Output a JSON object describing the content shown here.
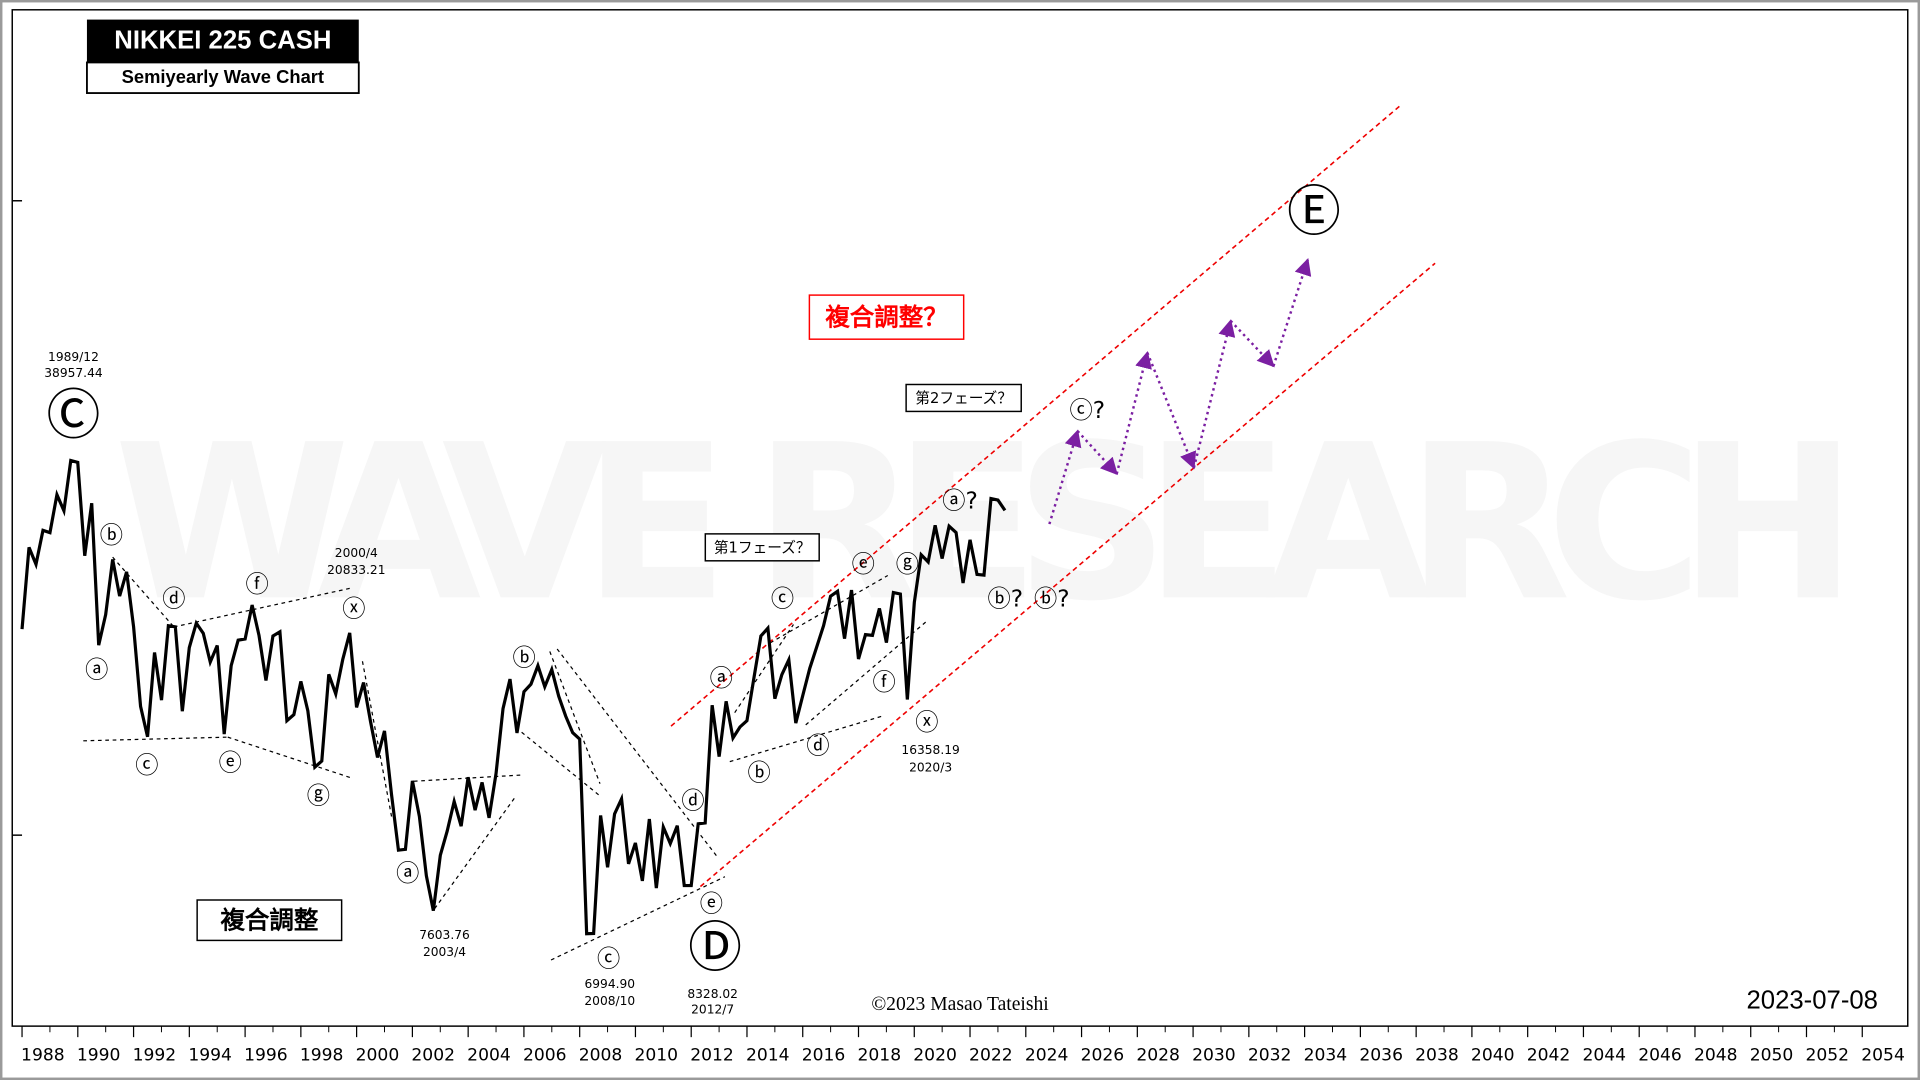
{
  "chart_data": {
    "type": "line",
    "title": "NIKKEI 225 CASH",
    "subtitle": "Semiyearly Wave Chart",
    "date": "2023-07-08",
    "copyright": "©2023 Masao Tateishi",
    "watermark": "WAVE RESEARCH",
    "color": "#000000",
    "log_scale": true,
    "xlim": [
      1988,
      2055.5
    ],
    "ylim": [
      5000,
      200000
    ],
    "xticks": [
      1988,
      1990,
      1992,
      1994,
      1996,
      1998,
      2000,
      2002,
      2004,
      2006,
      2008,
      2010,
      2012,
      2014,
      2016,
      2018,
      2020,
      2022,
      2024,
      2026,
      2028,
      2030,
      2032,
      2034,
      2036,
      2038,
      2040,
      2042,
      2044,
      2046,
      2048,
      2050,
      2052,
      2054
    ],
    "yticks": [
      10000,
      100000
    ],
    "x": [
      1988,
      1988.25,
      1988.5,
      1988.75,
      1989,
      1989.25,
      1989.5,
      1989.75,
      1990,
      1990.25,
      1990.5,
      1990.75,
      1991,
      1991.25,
      1991.5,
      1991.75,
      1992,
      1992.25,
      1992.5,
      1992.75,
      1993,
      1993.25,
      1993.5,
      1993.75,
      1994,
      1994.25,
      1994.5,
      1994.75,
      1995,
      1995.25,
      1995.5,
      1995.75,
      1996,
      1996.25,
      1996.5,
      1996.75,
      1997,
      1997.25,
      1997.5,
      1997.75,
      1998,
      1998.25,
      1998.5,
      1998.75,
      1999,
      1999.25,
      1999.5,
      1999.75,
      2000,
      2000.25,
      2000.5,
      2000.75,
      2001,
      2001.25,
      2001.5,
      2001.75,
      2002,
      2002.25,
      2002.5,
      2002.75,
      2003,
      2003.25,
      2003.5,
      2003.75,
      2004,
      2004.25,
      2004.5,
      2004.75,
      2005,
      2005.25,
      2005.5,
      2005.75,
      2006,
      2006.25,
      2006.5,
      2006.75,
      2007,
      2007.25,
      2007.5,
      2007.75,
      2008,
      2008.25,
      2008.5,
      2008.75,
      2009,
      2009.25,
      2009.5,
      2009.75,
      2010,
      2010.25,
      2010.5,
      2010.75,
      2011,
      2011.25,
      2011.5,
      2011.75,
      2012,
      2012.25,
      2012.5,
      2012.75,
      2013,
      2013.25,
      2013.5,
      2013.75,
      2014,
      2014.25,
      2014.5,
      2014.75,
      2015,
      2015.25,
      2015.5,
      2015.75,
      2016,
      2016.25,
      2016.5,
      2016.75,
      2017,
      2017.25,
      2017.5,
      2017.75,
      2018,
      2018.25,
      2018.5,
      2018.75,
      2019,
      2019.25,
      2019.5,
      2019.75,
      2020,
      2020.25,
      2020.5,
      2020.75,
      2021,
      2021.25,
      2021.5,
      2021.75,
      2022,
      2022.25,
      2022.5,
      2022.75,
      2023,
      2023.25
    ],
    "values": [
      21120,
      28420,
      26720,
      30240,
      29980,
      34410,
      32470,
      38957.44,
      38700,
      27560,
      33350,
      19930,
      22270,
      27200,
      23810,
      26010,
      21300,
      15960,
      14290,
      19400,
      16320,
      21390,
      21300,
      15680,
      19760,
      21590,
      20810,
      18740,
      19900,
      14430,
      18500,
      20290,
      20380,
      23060,
      20660,
      17530,
      20600,
      20920,
      15150,
      15490,
      17470,
      15700,
      12800,
      13090,
      17930,
      16700,
      18920,
      20833.21,
      15900,
      17400,
      15100,
      13260,
      14600,
      11610,
      9470,
      9500,
      12180,
      10700,
      8630,
      7603.76,
      9300,
      10150,
      11300,
      10330,
      12340,
      10950,
      12110,
      10650,
      12510,
      15830,
      17620,
      14490,
      16830,
      17290,
      18500,
      17140,
      18240,
      16560,
      15400,
      14500,
      14170,
      6994.9,
      7000,
      10740,
      8900,
      10800,
      11410,
      9010,
      9720,
      8470,
      10600,
      8250,
      10300,
      9700,
      10350,
      8330,
      8328.02,
      10420,
      10450,
      16030,
      13300,
      16260,
      14230,
      14810,
      15150,
      17690,
      20600,
      21200,
      16410,
      17900,
      18900,
      15020,
      16600,
      18320,
      19800,
      21400,
      23800,
      24230,
      20400,
      24340,
      18950,
      20700,
      20650,
      22770,
      20110,
      24120,
      24000,
      16358.19,
      23280,
      27660,
      26960,
      30790,
      27300,
      30700,
      30000,
      24980,
      29200,
      25770,
      25700,
      33920,
      33750,
      32500
    ],
    "annotations": [
      "1989/12",
      "38957.44",
      "Ⓒ",
      "ⓑ",
      "ⓐ",
      "ⓒ",
      "ⓓ",
      "ⓔ",
      "ⓕ",
      "ⓖ",
      "ⓧ",
      "2000/4",
      "20833.21",
      "ⓐ",
      "7603.76",
      "2003/4",
      "ⓑ",
      "ⓒ",
      "6994.90",
      "2008/10",
      "ⓓ",
      "ⓔ",
      "Ⓓ",
      "8328.02",
      "2012/7",
      "ⓐ",
      "ⓑ",
      "ⓒ",
      "ⓓ",
      "ⓔ",
      "ⓕ",
      "ⓖ",
      "ⓧ",
      "16358.19",
      "2020/3",
      "ⓐ?",
      "ⓑ?",
      "ⓑ?",
      "ⓒ?",
      "Ⓔ"
    ],
    "callouts": [
      "複合調整",
      "複合調整？",
      "第1フェーズ？",
      "第2フェーズ？"
    ],
    "channel_color": "#ee0000",
    "projection_color": "#7b1fa2"
  }
}
